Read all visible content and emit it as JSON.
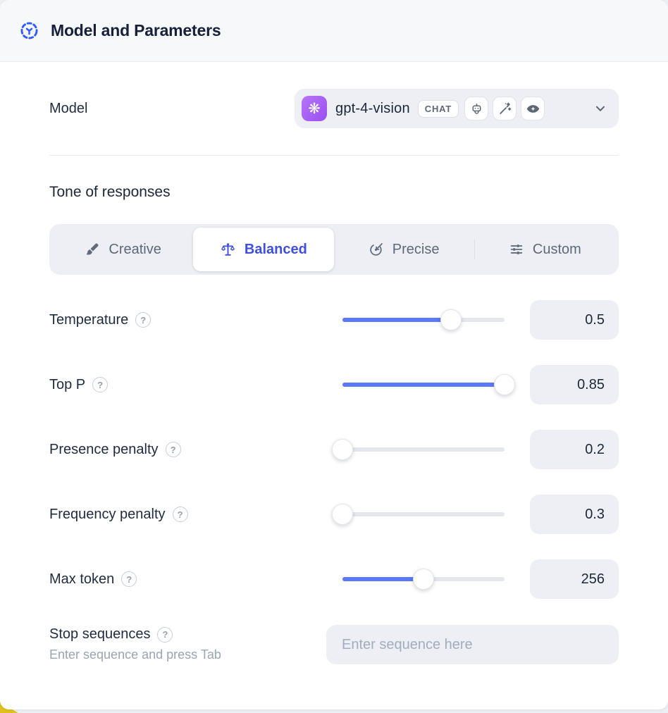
{
  "header": {
    "title": "Model and Parameters"
  },
  "model_row": {
    "label": "Model",
    "selected_model": "gpt-4-vision",
    "mode_badge": "CHAT",
    "provider": "openai",
    "capability_icons": [
      "robot",
      "magic-wand",
      "vision-eye"
    ]
  },
  "tone": {
    "heading": "Tone of responses",
    "selected": "Balanced",
    "options": [
      {
        "label": "Creative",
        "icon": "paintbrush"
      },
      {
        "label": "Balanced",
        "icon": "balance-scale"
      },
      {
        "label": "Precise",
        "icon": "target"
      },
      {
        "label": "Custom",
        "icon": "sliders"
      }
    ]
  },
  "parameters": [
    {
      "label": "Temperature",
      "value": "0.5",
      "fill_percent": 67
    },
    {
      "label": "Top P",
      "value": "0.85",
      "fill_percent": 100
    },
    {
      "label": "Presence penalty",
      "value": "0.2",
      "fill_percent": 0
    },
    {
      "label": "Frequency penalty",
      "value": "0.3",
      "fill_percent": 0
    },
    {
      "label": "Max token",
      "value": "256",
      "fill_percent": 50
    }
  ],
  "stop_sequences": {
    "label": "Stop sequences",
    "hint": "Enter sequence and press Tab",
    "placeholder": "Enter sequence here"
  },
  "help_glyph": "?",
  "provider_glyph": "❋",
  "colors": {
    "accent_blue": "#2e5bff",
    "selected_tone_blue": "#3f4fe0",
    "slider_fill_blue": "#5b79f8",
    "provider_purple": "#a35cf6",
    "field_background": "#edeff4",
    "corner_yellow": "#dfc01d"
  }
}
